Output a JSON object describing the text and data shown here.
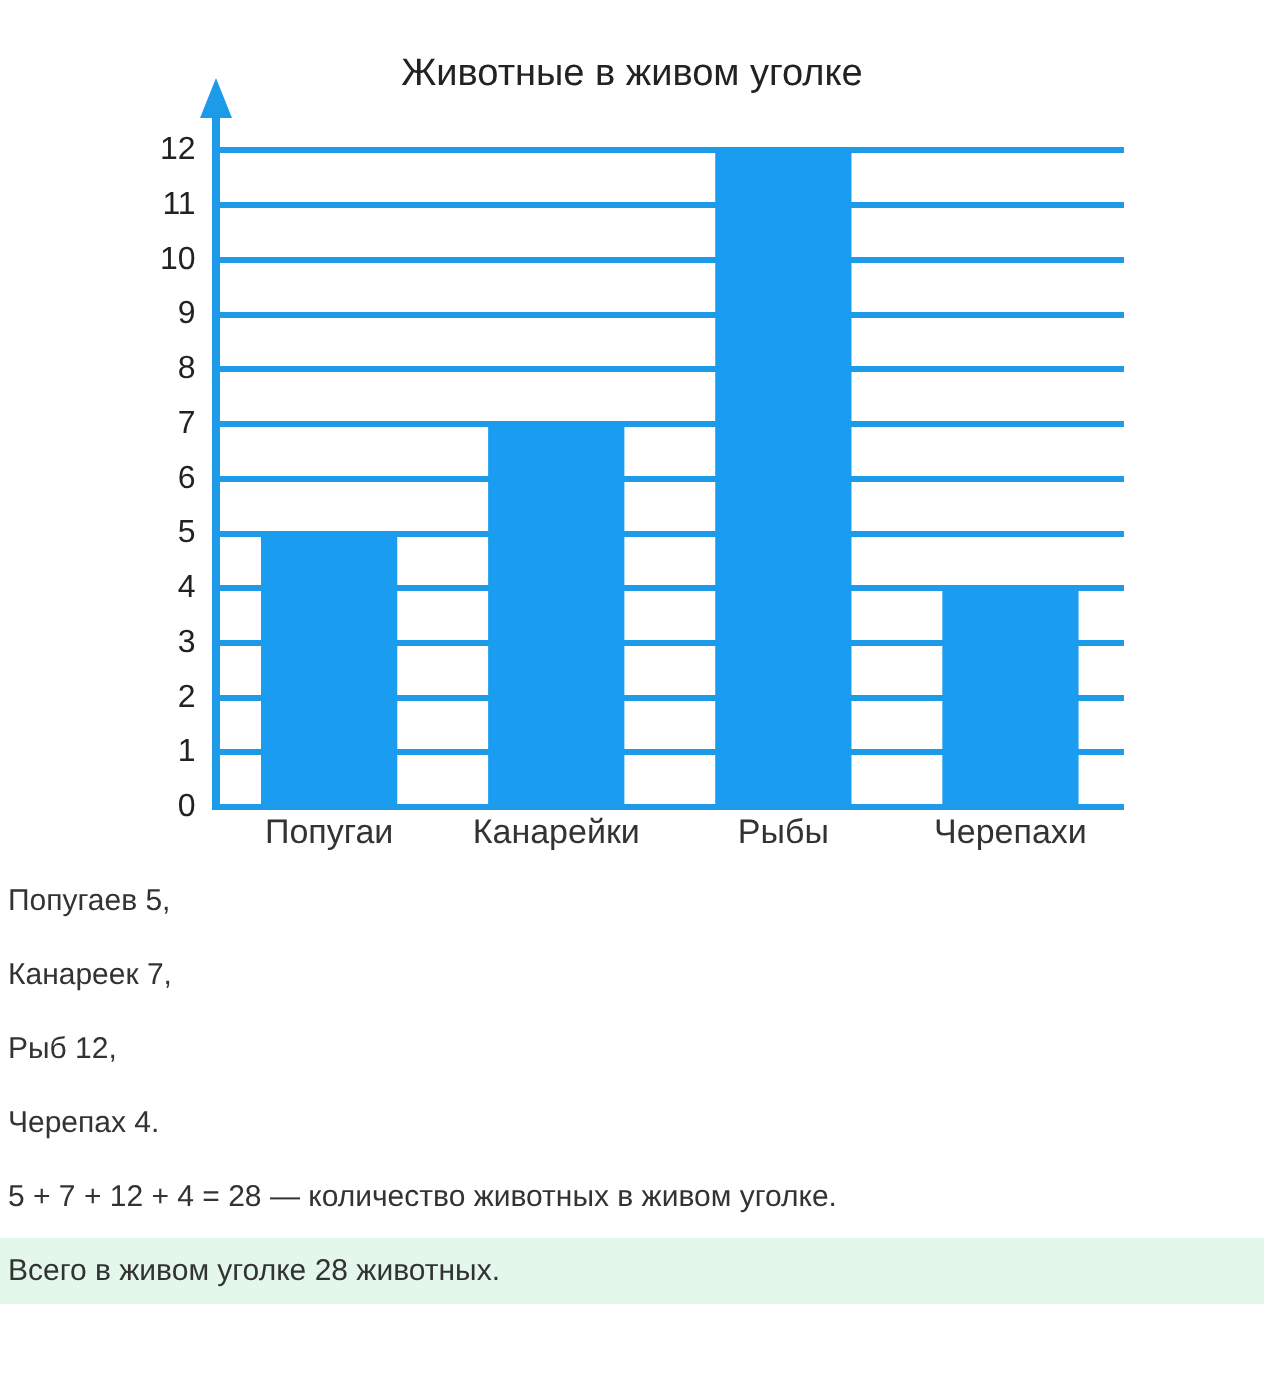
{
  "chart_data": {
    "type": "bar",
    "title": "Животные в живом уголке",
    "categories": [
      "Попугаи",
      "Канарейки",
      "Рыбы",
      "Черепахи"
    ],
    "values": [
      5,
      7,
      12,
      4
    ],
    "color": "#1a9cf0",
    "ylim": [
      0,
      12.6
    ],
    "yticks": [
      0,
      1,
      2,
      3,
      4,
      5,
      6,
      7,
      8,
      9,
      10,
      11,
      12
    ],
    "grid": "y",
    "legend": false,
    "annotations": [
      "Попугаев 5,",
      "Канареек 7,",
      "Рыб 12,",
      "Черепах 4.",
      "5 + 7 + 12 + 4 = 28 — количество животных в живом уголке.",
      "Всего в живом уголке 28 животных."
    ]
  }
}
